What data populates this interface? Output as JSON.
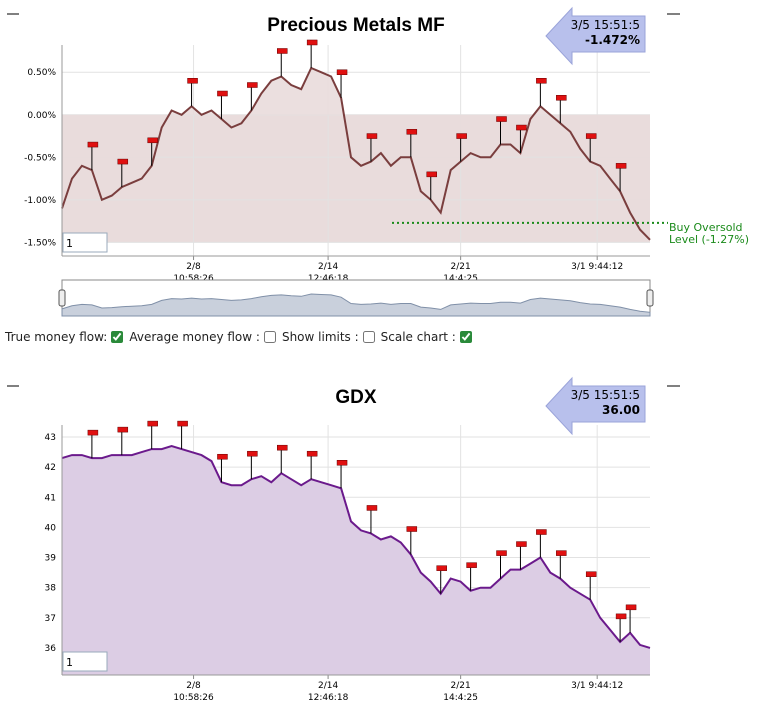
{
  "chart_data": [
    {
      "type": "line",
      "title": "Precious Metals MF",
      "x": [
        0,
        1,
        2,
        3,
        4,
        5,
        6,
        7,
        8,
        9,
        10,
        11,
        12,
        13,
        14,
        15,
        16,
        17,
        18,
        19,
        20,
        21,
        22,
        23,
        24,
        25,
        26,
        27,
        28,
        29,
        30,
        31,
        32,
        33,
        34,
        35,
        36,
        37,
        38,
        39,
        40,
        41,
        42,
        43,
        44,
        45,
        46,
        47,
        48,
        49,
        50,
        51,
        52,
        53,
        54,
        55,
        56,
        57,
        58,
        59
      ],
      "values": [
        -1.1,
        -0.75,
        -0.6,
        -0.65,
        -1.0,
        -0.95,
        -0.85,
        -0.8,
        -0.75,
        -0.6,
        -0.15,
        0.05,
        0.0,
        0.1,
        0.0,
        0.05,
        -0.05,
        -0.15,
        -0.1,
        0.05,
        0.25,
        0.4,
        0.45,
        0.35,
        0.3,
        0.55,
        0.5,
        0.45,
        0.2,
        -0.5,
        -0.6,
        -0.55,
        -0.45,
        -0.6,
        -0.5,
        -0.5,
        -0.9,
        -1.0,
        -1.15,
        -0.65,
        -0.55,
        -0.45,
        -0.5,
        -0.5,
        -0.35,
        -0.35,
        -0.45,
        -0.05,
        0.1,
        0.0,
        -0.1,
        -0.2,
        -0.4,
        -0.55,
        -0.6,
        -0.75,
        -0.9,
        -1.15,
        -1.35,
        -1.47
      ],
      "color": "#7a3e3e",
      "fill": "#e9dcdc",
      "flags": [
        3,
        6,
        9,
        13,
        16,
        19,
        22,
        25,
        28,
        31,
        35,
        37,
        40,
        44,
        46,
        48,
        50,
        53,
        56
      ],
      "band": [
        -1.5,
        0
      ],
      "threshold": -1.27,
      "threshold_label": "Buy Oversold\nLevel (-1.27%)",
      "threshold_color": "#1a8a1a",
      "ylim": [
        -1.66,
        0.82
      ],
      "yticks": [
        {
          "value": 0.5,
          "label": "0.50%"
        },
        {
          "value": 0,
          "label": "0.00%"
        },
        {
          "value": -0.5,
          "label": "-0.50%"
        },
        {
          "value": -1,
          "label": "-1.00%"
        },
        {
          "value": -1.5,
          "label": "-1.50%"
        }
      ],
      "xlim": [
        0,
        59
      ],
      "xticks": [
        {
          "value": 13.2,
          "label": "2/8\n10:58:26"
        },
        {
          "value": 26.7,
          "label": "2/14\n12:46:18"
        },
        {
          "value": 40,
          "label": "2/21\n14:4:25"
        },
        {
          "value": 53.7,
          "label": "3/1 9:44:12"
        }
      ],
      "grid": true,
      "callout": {
        "date": "3/5 15:51:5",
        "value": "-1.472%"
      },
      "zoom_input": "1"
    },
    {
      "type": "area",
      "title": "GDX",
      "x": [
        0,
        1,
        2,
        3,
        4,
        5,
        6,
        7,
        8,
        9,
        10,
        11,
        12,
        13,
        14,
        15,
        16,
        17,
        18,
        19,
        20,
        21,
        22,
        23,
        24,
        25,
        26,
        27,
        28,
        29,
        30,
        31,
        32,
        33,
        34,
        35,
        36,
        37,
        38,
        39,
        40,
        41,
        42,
        43,
        44,
        45,
        46,
        47,
        48,
        49,
        50,
        51,
        52,
        53,
        54,
        55,
        56,
        57,
        58,
        59
      ],
      "values": [
        42.3,
        42.4,
        42.4,
        42.3,
        42.3,
        42.4,
        42.4,
        42.4,
        42.5,
        42.6,
        42.6,
        42.7,
        42.6,
        42.5,
        42.4,
        42.2,
        41.5,
        41.4,
        41.4,
        41.6,
        41.7,
        41.5,
        41.8,
        41.6,
        41.4,
        41.6,
        41.5,
        41.4,
        41.3,
        40.2,
        39.9,
        39.8,
        39.6,
        39.7,
        39.5,
        39.1,
        38.5,
        38.2,
        37.8,
        38.3,
        38.2,
        37.9,
        38.0,
        38.0,
        38.3,
        38.6,
        38.6,
        38.8,
        39.0,
        38.5,
        38.3,
        38.0,
        37.8,
        37.6,
        37.0,
        36.6,
        36.2,
        36.5,
        36.1,
        36.0
      ],
      "color": "#6b1a8c",
      "fill": "#dccde4",
      "flags": [
        3,
        6,
        9,
        12,
        16,
        19,
        22,
        25,
        28,
        31,
        35,
        38,
        41,
        44,
        46,
        48,
        50,
        53,
        56,
        57
      ],
      "ylim": [
        35.1,
        43.4
      ],
      "yticks": [
        36,
        37,
        38,
        39,
        40,
        41,
        42,
        43
      ],
      "xlim": [
        0,
        59
      ],
      "xticks": [
        {
          "value": 13.2,
          "label": "2/8\n10:58:26"
        },
        {
          "value": 26.7,
          "label": "2/14\n12:46:18"
        },
        {
          "value": 40,
          "label": "2/21\n14:4:25"
        },
        {
          "value": 53.7,
          "label": "3/1 9:44:12"
        }
      ],
      "grid": true,
      "callout": {
        "date": "3/5 15:51:5",
        "value": "36.00"
      },
      "zoom_input": "1"
    }
  ],
  "controls": [
    {
      "label": "True money flow:",
      "checked": true
    },
    {
      "label": "Average money flow :",
      "checked": false
    },
    {
      "label": "Show limits :",
      "checked": false
    },
    {
      "label": "Scale chart :",
      "checked": true
    }
  ]
}
